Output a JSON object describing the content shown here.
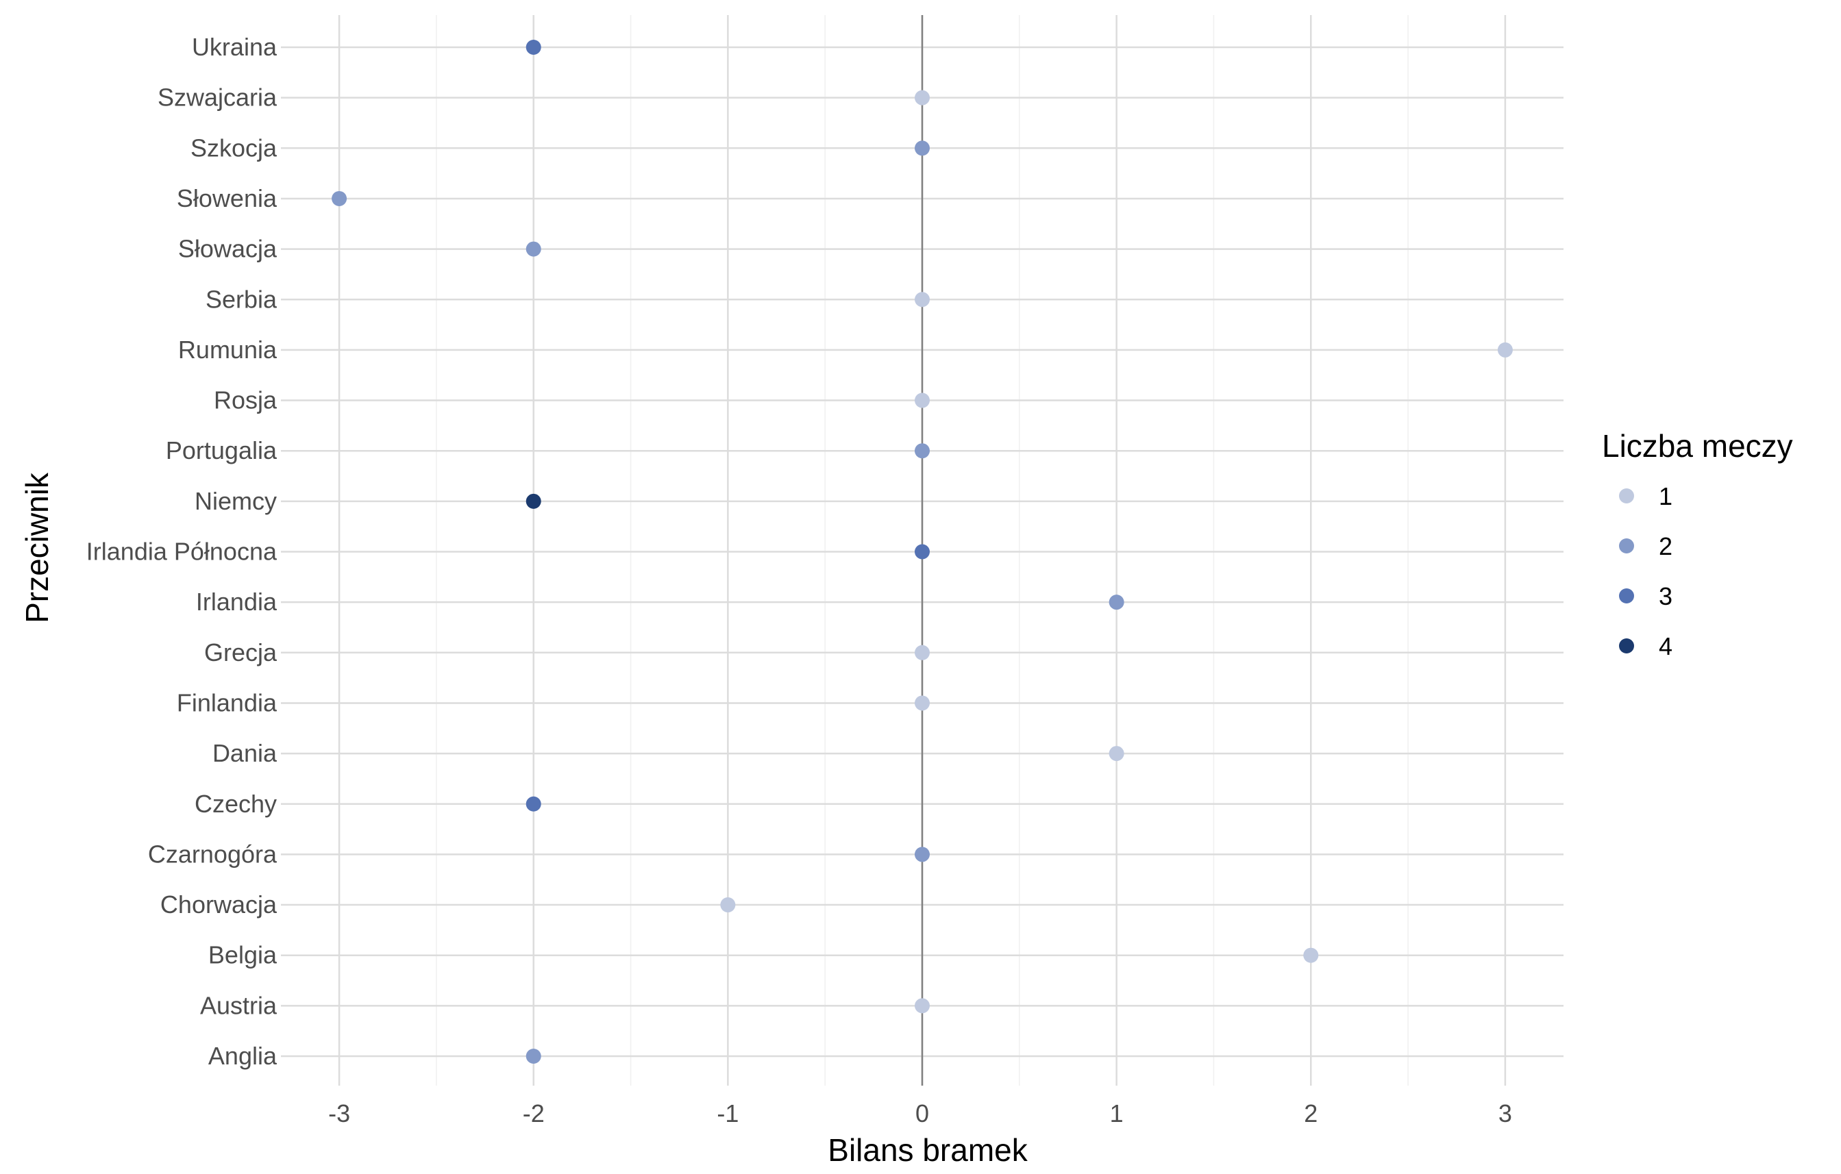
{
  "chart_data": {
    "type": "scatter",
    "xlabel": "Bilans bramek",
    "ylabel": "Przeciwnik",
    "xlim": [
      -3.3,
      3.3
    ],
    "x_ticks": [
      "-3",
      "-2",
      "-1",
      "0",
      "1",
      "2",
      "3"
    ],
    "categories": [
      "Anglia",
      "Austria",
      "Belgia",
      "Chorwacja",
      "Czarnogóra",
      "Czechy",
      "Dania",
      "Finlandia",
      "Grecja",
      "Irlandia",
      "Irlandia Północna",
      "Niemcy",
      "Portugalia",
      "Rosja",
      "Rumunia",
      "Serbia",
      "Słowacja",
      "Słowenia",
      "Szkocja",
      "Szwajcaria",
      "Ukraina"
    ],
    "points": [
      {
        "category": "Anglia",
        "x": -2,
        "matches": 2
      },
      {
        "category": "Austria",
        "x": 0,
        "matches": 1
      },
      {
        "category": "Belgia",
        "x": 2,
        "matches": 1
      },
      {
        "category": "Chorwacja",
        "x": -1,
        "matches": 1
      },
      {
        "category": "Czarnogóra",
        "x": 0,
        "matches": 2
      },
      {
        "category": "Czechy",
        "x": -2,
        "matches": 3
      },
      {
        "category": "Dania",
        "x": 1,
        "matches": 1
      },
      {
        "category": "Finlandia",
        "x": 0,
        "matches": 1
      },
      {
        "category": "Grecja",
        "x": 0,
        "matches": 1
      },
      {
        "category": "Irlandia",
        "x": 1,
        "matches": 2
      },
      {
        "category": "Irlandia Północna",
        "x": 0,
        "matches": 3
      },
      {
        "category": "Niemcy",
        "x": -2,
        "matches": 4
      },
      {
        "category": "Portugalia",
        "x": 0,
        "matches": 2
      },
      {
        "category": "Rosja",
        "x": 0,
        "matches": 1
      },
      {
        "category": "Rumunia",
        "x": 3,
        "matches": 1
      },
      {
        "category": "Serbia",
        "x": 0,
        "matches": 1
      },
      {
        "category": "Słowacja",
        "x": -2,
        "matches": 2
      },
      {
        "category": "Słowenia",
        "x": -3,
        "matches": 2
      },
      {
        "category": "Szkocja",
        "x": 0,
        "matches": 2
      },
      {
        "category": "Szwajcaria",
        "x": 0,
        "matches": 1
      },
      {
        "category": "Ukraina",
        "x": -2,
        "matches": 3
      }
    ],
    "legend": {
      "title": "Liczba meczy",
      "placement": "right",
      "items": [
        {
          "label": "1",
          "color": "#bfc9df"
        },
        {
          "label": "2",
          "color": "#8399c8"
        },
        {
          "label": "3",
          "color": "#5472b3"
        },
        {
          "label": "4",
          "color": "#1b3a6e"
        }
      ]
    },
    "reference_line_x": 0,
    "grid": true
  }
}
